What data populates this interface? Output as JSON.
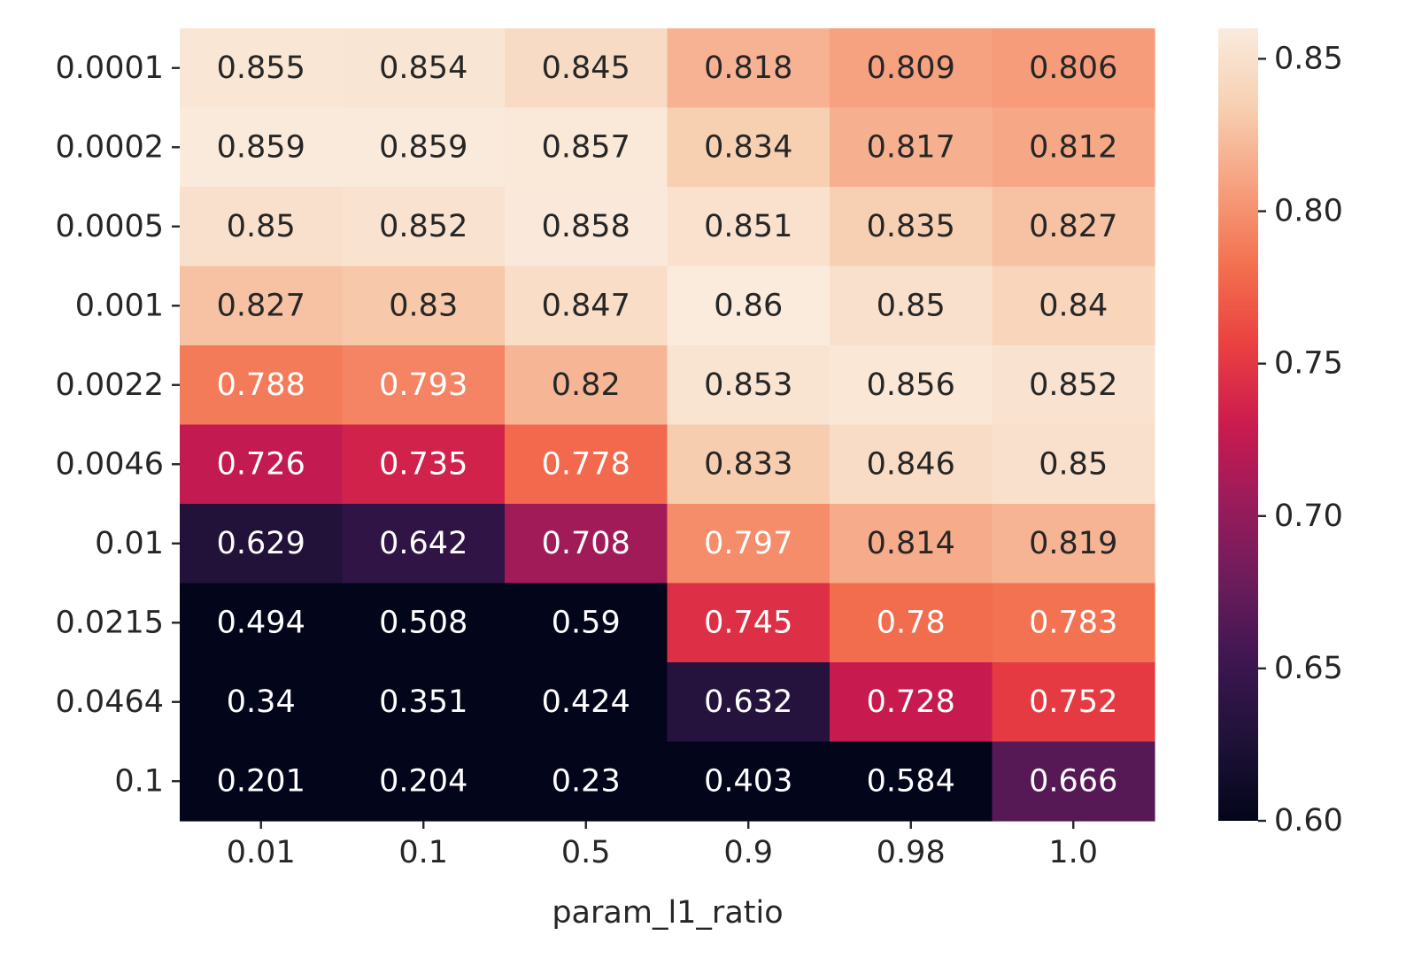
{
  "chart_data": {
    "type": "heatmap",
    "title": "",
    "xlabel": "param_l1_ratio",
    "ylabel": "",
    "x_categories": [
      "0.01",
      "0.1",
      "0.5",
      "0.9",
      "0.98",
      "1.0"
    ],
    "y_categories": [
      "0.0001",
      "0.0002",
      "0.0005",
      "0.001",
      "0.0022",
      "0.0046",
      "0.01",
      "0.0215",
      "0.0464",
      "0.1"
    ],
    "values": [
      [
        0.855,
        0.854,
        0.845,
        0.818,
        0.809,
        0.806
      ],
      [
        0.859,
        0.859,
        0.857,
        0.834,
        0.817,
        0.812
      ],
      [
        0.85,
        0.852,
        0.858,
        0.851,
        0.835,
        0.827
      ],
      [
        0.827,
        0.83,
        0.847,
        0.86,
        0.85,
        0.84
      ],
      [
        0.788,
        0.793,
        0.82,
        0.853,
        0.856,
        0.852
      ],
      [
        0.726,
        0.735,
        0.778,
        0.833,
        0.846,
        0.85
      ],
      [
        0.629,
        0.642,
        0.708,
        0.797,
        0.814,
        0.819
      ],
      [
        0.494,
        0.508,
        0.59,
        0.745,
        0.78,
        0.783
      ],
      [
        0.34,
        0.351,
        0.424,
        0.632,
        0.728,
        0.752
      ],
      [
        0.201,
        0.204,
        0.23,
        0.403,
        0.584,
        0.666
      ]
    ],
    "cell_labels": [
      [
        "0.855",
        "0.854",
        "0.845",
        "0.818",
        "0.809",
        "0.806"
      ],
      [
        "0.859",
        "0.859",
        "0.857",
        "0.834",
        "0.817",
        "0.812"
      ],
      [
        "0.85",
        "0.852",
        "0.858",
        "0.851",
        "0.835",
        "0.827"
      ],
      [
        "0.827",
        "0.83",
        "0.847",
        "0.86",
        "0.85",
        "0.84"
      ],
      [
        "0.788",
        "0.793",
        "0.82",
        "0.853",
        "0.856",
        "0.852"
      ],
      [
        "0.726",
        "0.735",
        "0.778",
        "0.833",
        "0.846",
        "0.85"
      ],
      [
        "0.629",
        "0.642",
        "0.708",
        "0.797",
        "0.814",
        "0.819"
      ],
      [
        "0.494",
        "0.508",
        "0.59",
        "0.745",
        "0.78",
        "0.783"
      ],
      [
        "0.34",
        "0.351",
        "0.424",
        "0.632",
        "0.728",
        "0.752"
      ],
      [
        "0.201",
        "0.204",
        "0.23",
        "0.403",
        "0.584",
        "0.666"
      ]
    ],
    "colorbar": {
      "vmin": 0.6,
      "vmax": 0.86,
      "ticks": [
        0.6,
        0.65,
        0.7,
        0.75,
        0.8,
        0.85
      ],
      "tick_labels": [
        "0.60",
        "0.65",
        "0.70",
        "0.75",
        "0.80",
        "0.85"
      ],
      "colormap": "rocket",
      "color_stops": [
        [
          0.0,
          "#03051a"
        ],
        [
          0.1,
          "#1e1237"
        ],
        [
          0.2,
          "#3d1650"
        ],
        [
          0.3,
          "#6b1c5b"
        ],
        [
          0.4,
          "#9a1b5b"
        ],
        [
          0.5,
          "#cb1b4f"
        ],
        [
          0.6,
          "#ea4040"
        ],
        [
          0.7,
          "#f3704f"
        ],
        [
          0.8,
          "#f6a07e"
        ],
        [
          0.9,
          "#f7cfb1"
        ],
        [
          1.0,
          "#faebdd"
        ]
      ]
    },
    "annotation_colors": {
      "light": "#ffffff",
      "dark": "#262626"
    },
    "grid": false
  }
}
